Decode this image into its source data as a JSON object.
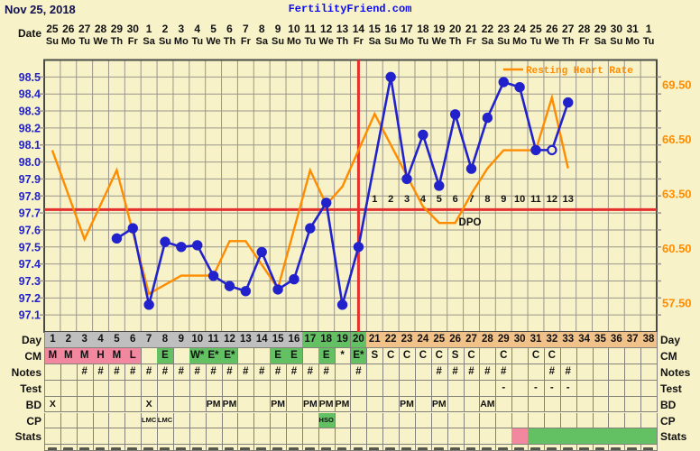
{
  "header": {
    "title": "Nov 25, 2018",
    "site": "FertilityFriend.com"
  },
  "date_axis": {
    "label": "Date",
    "dates": [
      "25",
      "26",
      "27",
      "28",
      "29",
      "30",
      "1",
      "2",
      "3",
      "4",
      "5",
      "6",
      "7",
      "8",
      "9",
      "10",
      "11",
      "12",
      "13",
      "14",
      "15",
      "16",
      "17",
      "18",
      "19",
      "20",
      "21",
      "22",
      "23",
      "24",
      "25",
      "26",
      "27",
      "28",
      "29",
      "30",
      "31",
      "1"
    ],
    "weekdays": [
      "Su",
      "Mo",
      "Tu",
      "We",
      "Th",
      "Fr",
      "Sa",
      "Su",
      "Mo",
      "Tu",
      "We",
      "Th",
      "Fr",
      "Sa",
      "Su",
      "Mo",
      "Tu",
      "We",
      "Th",
      "Fr",
      "Sa",
      "Su",
      "Mo",
      "Tu",
      "We",
      "Th",
      "Fr",
      "Sa",
      "Su",
      "Mo",
      "Tu",
      "We",
      "Th",
      "Fr",
      "Sa",
      "Su",
      "Mo",
      "Tu"
    ]
  },
  "chart_data": {
    "type": "line",
    "x_days": 38,
    "temp_axis": {
      "ticks": [
        "98.5",
        "98.4",
        "98.3",
        "98.2",
        "98.1",
        "98.0",
        "97.9",
        "97.8",
        "97.7",
        "97.6",
        "97.5",
        "97.4",
        "97.3",
        "97.2",
        "97.1"
      ],
      "tick_values": [
        98.5,
        98.4,
        98.3,
        98.2,
        98.1,
        98.0,
        97.9,
        97.8,
        97.7,
        97.6,
        97.5,
        97.4,
        97.3,
        97.2,
        97.1
      ],
      "range_min": 97.0,
      "range_max": 98.6,
      "color": "#2222cc"
    },
    "hr_axis": {
      "ticks": [
        "69.50",
        "66.50",
        "63.50",
        "60.50",
        "57.50"
      ],
      "tick_values": [
        69.5,
        66.5,
        63.5,
        60.5,
        57.5
      ],
      "color": "#ff8c00"
    },
    "series": [
      {
        "name": "Temperature",
        "color": "#2222cc",
        "points": [
          {
            "day": 5,
            "value": 97.55
          },
          {
            "day": 6,
            "value": 97.61
          },
          {
            "day": 7,
            "value": 97.16
          },
          {
            "day": 8,
            "value": 97.53
          },
          {
            "day": 9,
            "value": 97.5
          },
          {
            "day": 10,
            "value": 97.51
          },
          {
            "day": 11,
            "value": 97.33
          },
          {
            "day": 12,
            "value": 97.27
          },
          {
            "day": 13,
            "value": 97.24
          },
          {
            "day": 14,
            "value": 97.47
          },
          {
            "day": 15,
            "value": 97.25
          },
          {
            "day": 16,
            "value": 97.31
          },
          {
            "day": 17,
            "value": 97.61
          },
          {
            "day": 18,
            "value": 97.76
          },
          {
            "day": 19,
            "value": 97.16
          },
          {
            "day": 20,
            "value": 97.5
          },
          {
            "day": 22,
            "value": 98.5
          },
          {
            "day": 23,
            "value": 97.9
          },
          {
            "day": 24,
            "value": 98.16
          },
          {
            "day": 25,
            "value": 97.86
          },
          {
            "day": 26,
            "value": 98.28
          },
          {
            "day": 27,
            "value": 97.96
          },
          {
            "day": 28,
            "value": 98.26
          },
          {
            "day": 29,
            "value": 98.47
          },
          {
            "day": 30,
            "value": 98.44
          },
          {
            "day": 31,
            "value": 98.07
          },
          {
            "day": 32,
            "value": 98.07,
            "open": true
          },
          {
            "day": 33,
            "value": 98.35
          }
        ]
      },
      {
        "name": "Resting Heart Rate",
        "color": "#ff8c00",
        "points": [
          {
            "day": 1,
            "value": 65.9
          },
          {
            "day": 3,
            "value": 61
          },
          {
            "day": 5,
            "value": 64.8
          },
          {
            "day": 7,
            "value": 58
          },
          {
            "day": 9,
            "value": 59
          },
          {
            "day": 10,
            "value": 59
          },
          {
            "day": 11,
            "value": 59
          },
          {
            "day": 12,
            "value": 60.9
          },
          {
            "day": 13,
            "value": 60.9
          },
          {
            "day": 15,
            "value": 58.3
          },
          {
            "day": 17,
            "value": 64.8
          },
          {
            "day": 18,
            "value": 62.9
          },
          {
            "day": 19,
            "value": 63.9
          },
          {
            "day": 21,
            "value": 67.9
          },
          {
            "day": 24,
            "value": 62.8
          },
          {
            "day": 25,
            "value": 61.9
          },
          {
            "day": 26,
            "value": 61.9
          },
          {
            "day": 27,
            "value": 63.5
          },
          {
            "day": 28,
            "value": 64.9
          },
          {
            "day": 29,
            "value": 65.9
          },
          {
            "day": 30,
            "value": 65.9
          },
          {
            "day": 31,
            "value": 65.9
          },
          {
            "day": 32,
            "value": 68.8
          },
          {
            "day": 33,
            "value": 64.9
          }
        ]
      }
    ],
    "coverline_value": 97.72,
    "ovulation_day": 20,
    "dpo": {
      "labels": [
        "1",
        "2",
        "3",
        "4",
        "5",
        "6",
        "7",
        "8",
        "9",
        "10",
        "11",
        "12",
        "13"
      ],
      "start_day": 21,
      "caption": "DPO"
    },
    "legend": {
      "label": "Resting Heart Rate"
    },
    "line_color_red": "#e53030"
  },
  "table": {
    "rows": [
      {
        "label": "Day",
        "values": [
          "1",
          "2",
          "3",
          "4",
          "5",
          "6",
          "7",
          "8",
          "9",
          "10",
          "11",
          "12",
          "13",
          "14",
          "15",
          "16",
          "17",
          "18",
          "19",
          "20",
          "21",
          "22",
          "23",
          "24",
          "25",
          "26",
          "27",
          "28",
          "29",
          "30",
          "31",
          "32",
          "33",
          "34",
          "35",
          "36",
          "37",
          "38"
        ],
        "bg": [
          "gray",
          "gray",
          "gray",
          "gray",
          "gray",
          "gray",
          "gray",
          "gray",
          "gray",
          "gray",
          "gray",
          "gray",
          "gray",
          "gray",
          "gray",
          "gray",
          "grn",
          "grn",
          "grn",
          "grn",
          "tan",
          "tan",
          "tan",
          "tan",
          "tan",
          "tan",
          "tan",
          "tan",
          "tan",
          "tan",
          "tan",
          "tan",
          "tan",
          "tan",
          "tan",
          "tan",
          "tan",
          "tan"
        ]
      },
      {
        "label": "CM",
        "values": [
          "M",
          "M",
          "M",
          "H",
          "M",
          "L",
          "",
          "E",
          "",
          "W*",
          "E*",
          "E*",
          "",
          "",
          "E",
          "E",
          "",
          "E",
          "*",
          "E*",
          "S",
          "C",
          "C",
          "C",
          "C",
          "S",
          "C",
          "",
          "C",
          "",
          "C",
          "C",
          "",
          "",
          "",
          "",
          "",
          ""
        ],
        "bg": [
          "pink",
          "pink",
          "pink",
          "pink",
          "pink",
          "pink",
          "",
          "grn",
          "",
          "grn",
          "grn",
          "grn",
          "",
          "",
          "grn",
          "grn",
          "",
          "grn",
          "",
          "grn",
          "",
          "",
          "",
          "",
          "",
          "",
          "",
          "",
          "",
          "",
          "",
          "",
          "",
          "",
          "",
          "",
          "",
          ""
        ]
      },
      {
        "label": "Notes",
        "values": [
          "",
          "",
          "#",
          "#",
          "#",
          "#",
          "#",
          "#",
          "#",
          "#",
          "#",
          "#",
          "#",
          "#",
          "#",
          "#",
          "#",
          "#",
          "",
          "#",
          "",
          "",
          "",
          "",
          "#",
          "#",
          "#",
          "#",
          "#",
          "",
          "",
          "#",
          "#",
          "",
          "",
          "",
          "",
          ""
        ],
        "bg": [
          "",
          "",
          "",
          "",
          "",
          "",
          "",
          "",
          "",
          "",
          "",
          "",
          "",
          "",
          "",
          "",
          "",
          "",
          "",
          "",
          "",
          "",
          "",
          "",
          "",
          "",
          "",
          "",
          "",
          "",
          "",
          "",
          "",
          "",
          "",
          "",
          "",
          ""
        ]
      },
      {
        "label": "Test",
        "values": [
          "",
          "",
          "",
          "",
          "",
          "",
          "",
          "",
          "",
          "",
          "",
          "",
          "",
          "",
          "",
          "",
          "",
          "",
          "",
          "",
          "",
          "",
          "",
          "",
          "",
          "",
          "",
          "",
          "-",
          "",
          "-",
          "-",
          "-",
          "",
          "",
          "",
          "",
          ""
        ],
        "bg": [
          "",
          "",
          "",
          "",
          "",
          "",
          "",
          "",
          "",
          "",
          "",
          "",
          "",
          "",
          "",
          "",
          "",
          "",
          "",
          "",
          "",
          "",
          "",
          "",
          "",
          "",
          "",
          "",
          "",
          "",
          "",
          "",
          "",
          "",
          "",
          "",
          "",
          ""
        ]
      },
      {
        "label": "BD",
        "values": [
          "X",
          "",
          "",
          "",
          "",
          "",
          "X",
          "",
          "",
          "",
          "PM",
          "PM",
          "",
          "",
          "PM",
          "",
          "PM",
          "PM",
          "PM",
          "",
          "",
          "",
          "PM",
          "",
          "PM",
          "",
          "",
          "AM",
          "",
          "",
          "",
          "",
          "",
          "",
          "",
          "",
          "",
          ""
        ],
        "bg": [
          "",
          "",
          "",
          "",
          "",
          "",
          "",
          "",
          "",
          "",
          "",
          "",
          "",
          "",
          "",
          "",
          "",
          "",
          "",
          "",
          "",
          "",
          "",
          "",
          "",
          "",
          "",
          "",
          "",
          "",
          "",
          "",
          "",
          "",
          "",
          "",
          "",
          ""
        ]
      },
      {
        "label": "CP",
        "values": [
          "",
          "",
          "",
          "",
          "",
          "",
          "LMC",
          "LMC",
          "",
          "",
          "",
          "",
          "",
          "",
          "",
          "",
          "",
          "HSO",
          "",
          "",
          "",
          "",
          "",
          "",
          "",
          "",
          "",
          "",
          "",
          "",
          "",
          "",
          "",
          "",
          "",
          "",
          "",
          ""
        ],
        "bg": [
          "",
          "",
          "",
          "",
          "",
          "",
          "",
          "",
          "",
          "",
          "",
          "",
          "",
          "",
          "",
          "",
          "",
          "grn",
          "",
          "",
          "",
          "",
          "",
          "",
          "",
          "",
          "",
          "",
          "",
          "",
          "",
          "",
          "",
          "",
          "",
          "",
          "",
          ""
        ]
      },
      {
        "label": "Stats",
        "values": [
          "",
          "",
          "",
          "",
          "",
          "",
          "",
          "",
          "",
          "",
          "",
          "",
          "",
          "",
          "",
          "",
          "",
          "",
          "",
          "",
          "",
          "",
          "",
          "",
          "",
          "",
          "",
          "",
          "",
          "",
          "",
          "",
          "",
          "",
          "",
          "",
          "",
          ""
        ],
        "bg": [
          "",
          "",
          "",
          "",
          "",
          "",
          "",
          "",
          "",
          "",
          "",
          "",
          "",
          "",
          "",
          "",
          "",
          "",
          "",
          "",
          "",
          "",
          "",
          "",
          "",
          "",
          "",
          "",
          "",
          "pink",
          "grn",
          "grn",
          "grn",
          "grn",
          "grn",
          "grn",
          "grn",
          "grn"
        ]
      }
    ],
    "partial_row_clipped": true
  },
  "colors": {
    "background": "#f8f2c8",
    "grid": "#9a968c",
    "frame": "#4a4a46",
    "temp_line": "#2222cc",
    "hr_line": "#ff8c00",
    "red_line": "#e53030",
    "cell_gray": "#bfbfbf",
    "cell_green": "#63c063",
    "cell_pink": "#f287a0",
    "cell_tan": "#f0c189"
  }
}
